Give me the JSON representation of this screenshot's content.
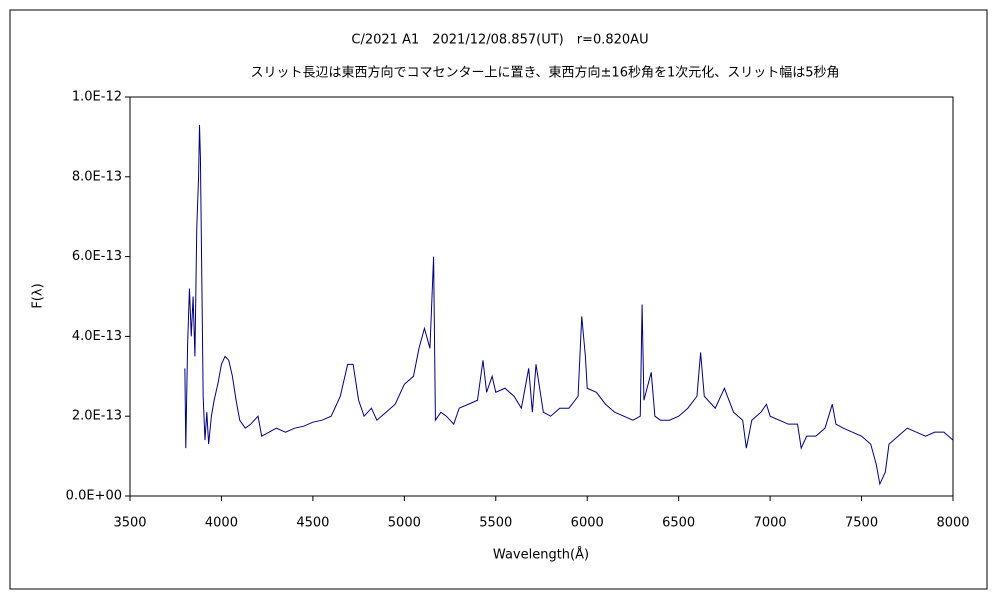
{
  "chart_data": {
    "type": "line",
    "title": "C/2021 A1　2021/12/08.857(UT)　r=0.820AU",
    "subtitle": "スリット長辺は東西方向でコマセンター上に置き、東西方向±16秒角を1次元化、スリット幅は5秒角",
    "xlabel": "Wavelength(Å)",
    "ylabel": "F(λ)",
    "xlim": [
      3500,
      8000
    ],
    "xticks": [
      3500,
      4000,
      4500,
      5000,
      5500,
      6000,
      6500,
      7000,
      7500,
      8000
    ],
    "ylim": [
      0,
      1e-12
    ],
    "yticks": [
      {
        "value": 0,
        "label": "0.0E+00"
      },
      {
        "value": 2e-13,
        "label": "2.0E-13"
      },
      {
        "value": 4e-13,
        "label": "4.0E-13"
      },
      {
        "value": 6e-13,
        "label": "6.0E-13"
      },
      {
        "value": 8e-13,
        "label": "8.0E-13"
      },
      {
        "value": 1e-12,
        "label": "1.0E-12"
      }
    ],
    "grid": false,
    "color": "#000080",
    "x": [
      3800,
      3805,
      3815,
      3825,
      3835,
      3845,
      3855,
      3865,
      3875,
      3880,
      3885,
      3890,
      3900,
      3910,
      3920,
      3930,
      3945,
      3960,
      3980,
      4000,
      4020,
      4040,
      4060,
      4080,
      4100,
      4130,
      4160,
      4200,
      4220,
      4260,
      4300,
      4350,
      4400,
      4450,
      4500,
      4550,
      4600,
      4650,
      4690,
      4720,
      4750,
      4780,
      4820,
      4850,
      4900,
      4950,
      5000,
      5050,
      5080,
      5110,
      5140,
      5160,
      5170,
      5200,
      5230,
      5270,
      5300,
      5350,
      5400,
      5430,
      5450,
      5480,
      5500,
      5550,
      5600,
      5640,
      5680,
      5700,
      5720,
      5760,
      5800,
      5850,
      5900,
      5950,
      5970,
      5990,
      6000,
      6050,
      6100,
      6150,
      6200,
      6250,
      6290,
      6300,
      6310,
      6350,
      6370,
      6400,
      6450,
      6500,
      6550,
      6600,
      6620,
      6640,
      6700,
      6750,
      6800,
      6850,
      6870,
      6900,
      6950,
      6980,
      7000,
      7050,
      7100,
      7150,
      7170,
      7200,
      7250,
      7300,
      7340,
      7360,
      7400,
      7450,
      7500,
      7550,
      7580,
      7600,
      7630,
      7650,
      7700,
      7750,
      7800,
      7850,
      7900,
      7950,
      8000
    ],
    "values": [
      3.2e-13,
      1.2e-13,
      3.8e-13,
      5.2e-13,
      4e-13,
      5e-13,
      3.5e-13,
      6.7e-13,
      8e-13,
      9.3e-13,
      8.5e-13,
      6.5e-13,
      2.5e-13,
      1.4e-13,
      2.1e-13,
      1.3e-13,
      2e-13,
      2.4e-13,
      2.8e-13,
      3.3e-13,
      3.5e-13,
      3.4e-13,
      3e-13,
      2.4e-13,
      1.9e-13,
      1.7e-13,
      1.8e-13,
      2e-13,
      1.5e-13,
      1.6e-13,
      1.7e-13,
      1.6e-13,
      1.7e-13,
      1.75e-13,
      1.85e-13,
      1.9e-13,
      2e-13,
      2.5e-13,
      3.3e-13,
      3.3e-13,
      2.4e-13,
      2e-13,
      2.2e-13,
      1.9e-13,
      2.1e-13,
      2.3e-13,
      2.8e-13,
      3e-13,
      3.7e-13,
      4.2e-13,
      3.7e-13,
      6e-13,
      1.9e-13,
      2.1e-13,
      2e-13,
      1.8e-13,
      2.2e-13,
      2.3e-13,
      2.4e-13,
      3.4e-13,
      2.6e-13,
      3e-13,
      2.6e-13,
      2.7e-13,
      2.5e-13,
      2.2e-13,
      3.2e-13,
      2.1e-13,
      3.3e-13,
      2.1e-13,
      2e-13,
      2.2e-13,
      2.2e-13,
      2.5e-13,
      4.5e-13,
      3.5e-13,
      2.7e-13,
      2.6e-13,
      2.3e-13,
      2.1e-13,
      2e-13,
      1.9e-13,
      2e-13,
      4.8e-13,
      2.4e-13,
      3.1e-13,
      2e-13,
      1.9e-13,
      1.9e-13,
      2e-13,
      2.2e-13,
      2.5e-13,
      3.6e-13,
      2.5e-13,
      2.2e-13,
      2.7e-13,
      2.1e-13,
      1.9e-13,
      1.2e-13,
      1.9e-13,
      2.1e-13,
      2.3e-13,
      2e-13,
      1.9e-13,
      1.8e-13,
      1.8e-13,
      1.2e-13,
      1.5e-13,
      1.5e-13,
      1.7e-13,
      2.3e-13,
      1.8e-13,
      1.7e-13,
      1.6e-13,
      1.5e-13,
      1.3e-13,
      8e-14,
      3e-14,
      6e-14,
      1.3e-13,
      1.5e-13,
      1.7e-13,
      1.6e-13,
      1.5e-13,
      1.6e-13,
      1.6e-13,
      1.4e-13
    ]
  }
}
